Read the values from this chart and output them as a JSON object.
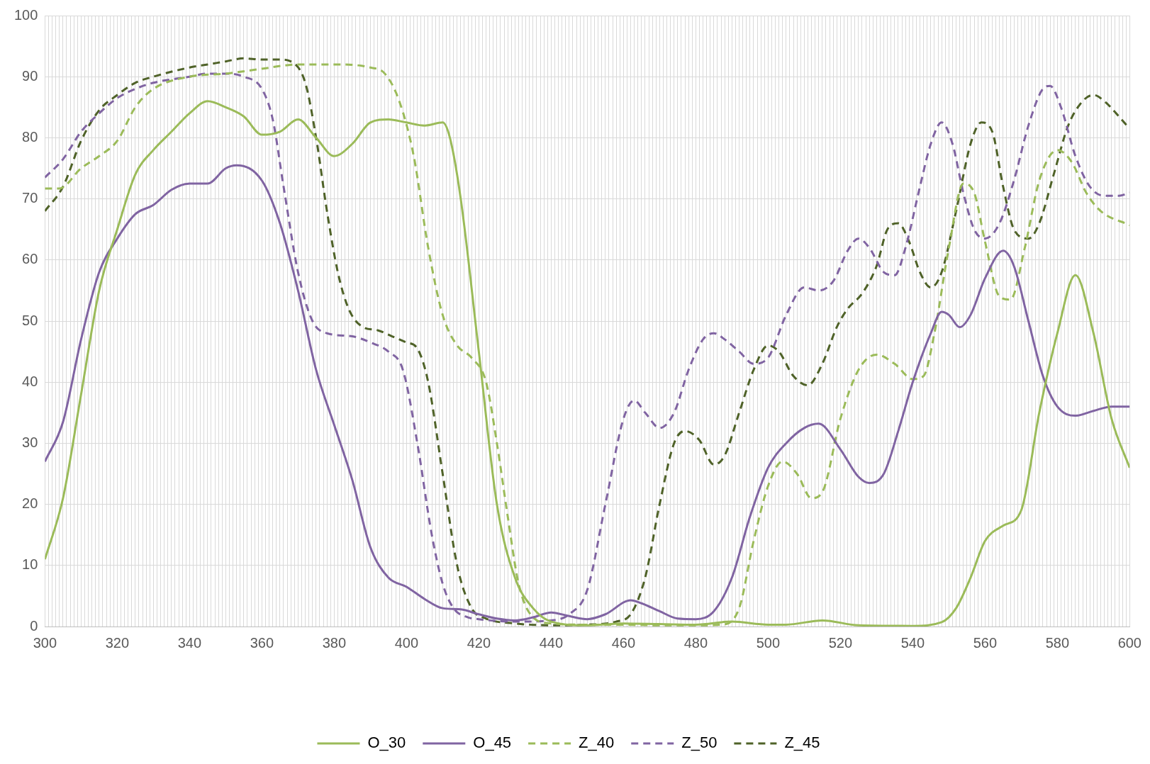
{
  "chart_data": {
    "type": "line",
    "xlim": [
      300,
      600
    ],
    "ylim": [
      0,
      100
    ],
    "yticks": [
      0,
      10,
      20,
      30,
      40,
      50,
      60,
      70,
      80,
      90,
      100
    ],
    "xticks": [
      300,
      {
        "value": 301,
        "label": null
      },
      {
        "value": 302,
        "label": null
      },
      {
        "value": 303,
        "label": null
      },
      {
        "value": 304,
        "label": null
      },
      {
        "value": 305,
        "label": null
      },
      {
        "value": 306,
        "label": null
      },
      {
        "value": 307,
        "label": null
      },
      {
        "value": 308,
        "label": null
      },
      {
        "value": 309,
        "label": null
      },
      {
        "value": 310,
        "label": null
      },
      {
        "value": 311,
        "label": null
      },
      {
        "value": 312,
        "label": null
      },
      {
        "value": 313,
        "label": null
      },
      {
        "value": 314,
        "label": null
      },
      {
        "value": 315,
        "label": null
      },
      {
        "value": 316,
        "label": null
      },
      {
        "value": 317,
        "label": null
      },
      {
        "value": 318,
        "label": null
      },
      {
        "value": 319,
        "label": null
      },
      320,
      {
        "value": 321,
        "label": null
      },
      {
        "value": 322,
        "label": null
      },
      {
        "value": 323,
        "label": null
      },
      {
        "value": 324,
        "label": null
      },
      {
        "value": 325,
        "label": null
      },
      {
        "value": 326,
        "label": null
      },
      {
        "value": 327,
        "label": null
      },
      {
        "value": 328,
        "label": null
      },
      {
        "value": 329,
        "label": null
      },
      {
        "value": 330,
        "label": null
      },
      {
        "value": 331,
        "label": null
      },
      {
        "value": 332,
        "label": null
      },
      {
        "value": 333,
        "label": null
      },
      {
        "value": 334,
        "label": null
      },
      {
        "value": 335,
        "label": null
      },
      {
        "value": 336,
        "label": null
      },
      {
        "value": 337,
        "label": null
      },
      {
        "value": 338,
        "label": null
      },
      {
        "value": 339,
        "label": null
      },
      340,
      {
        "value": 341,
        "label": null
      },
      {
        "value": 342,
        "label": null
      },
      {
        "value": 343,
        "label": null
      },
      {
        "value": 344,
        "label": null
      },
      {
        "value": 345,
        "label": null
      },
      {
        "value": 346,
        "label": null
      },
      {
        "value": 347,
        "label": null
      },
      {
        "value": 348,
        "label": null
      },
      {
        "value": 349,
        "label": null
      },
      {
        "value": 350,
        "label": null
      },
      {
        "value": 351,
        "label": null
      },
      {
        "value": 352,
        "label": null
      },
      {
        "value": 353,
        "label": null
      },
      {
        "value": 354,
        "label": null
      },
      {
        "value": 355,
        "label": null
      },
      {
        "value": 356,
        "label": null
      },
      {
        "value": 357,
        "label": null
      },
      {
        "value": 358,
        "label": null
      },
      {
        "value": 359,
        "label": null
      },
      360,
      {
        "value": 361,
        "label": null
      },
      {
        "value": 362,
        "label": null
      },
      {
        "value": 363,
        "label": null
      },
      {
        "value": 364,
        "label": null
      },
      {
        "value": 365,
        "label": null
      },
      {
        "value": 366,
        "label": null
      },
      {
        "value": 367,
        "label": null
      },
      {
        "value": 368,
        "label": null
      },
      {
        "value": 369,
        "label": null
      },
      {
        "value": 370,
        "label": null
      },
      {
        "value": 371,
        "label": null
      },
      {
        "value": 372,
        "label": null
      },
      {
        "value": 373,
        "label": null
      },
      {
        "value": 374,
        "label": null
      },
      {
        "value": 375,
        "label": null
      },
      {
        "value": 376,
        "label": null
      },
      {
        "value": 377,
        "label": null
      },
      {
        "value": 378,
        "label": null
      },
      {
        "value": 379,
        "label": null
      },
      380,
      {
        "value": 381,
        "label": null
      },
      {
        "value": 382,
        "label": null
      },
      {
        "value": 383,
        "label": null
      },
      {
        "value": 384,
        "label": null
      },
      {
        "value": 385,
        "label": null
      },
      {
        "value": 386,
        "label": null
      },
      {
        "value": 387,
        "label": null
      },
      {
        "value": 388,
        "label": null
      },
      {
        "value": 389,
        "label": null
      },
      {
        "value": 390,
        "label": null
      },
      {
        "value": 391,
        "label": null
      },
      {
        "value": 392,
        "label": null
      },
      {
        "value": 393,
        "label": null
      },
      {
        "value": 394,
        "label": null
      },
      {
        "value": 395,
        "label": null
      },
      {
        "value": 396,
        "label": null
      },
      {
        "value": 397,
        "label": null
      },
      {
        "value": 398,
        "label": null
      },
      {
        "value": 399,
        "label": null
      },
      400,
      {
        "value": 401,
        "label": null
      },
      {
        "value": 402,
        "label": null
      },
      {
        "value": 403,
        "label": null
      },
      {
        "value": 404,
        "label": null
      },
      {
        "value": 405,
        "label": null
      },
      {
        "value": 406,
        "label": null
      },
      {
        "value": 407,
        "label": null
      },
      {
        "value": 408,
        "label": null
      },
      {
        "value": 409,
        "label": null
      },
      {
        "value": 410,
        "label": null
      },
      {
        "value": 411,
        "label": null
      },
      {
        "value": 412,
        "label": null
      },
      {
        "value": 413,
        "label": null
      },
      {
        "value": 414,
        "label": null
      },
      {
        "value": 415,
        "label": null
      },
      {
        "value": 416,
        "label": null
      },
      {
        "value": 417,
        "label": null
      },
      {
        "value": 418,
        "label": null
      },
      {
        "value": 419,
        "label": null
      },
      420,
      {
        "value": 421,
        "label": null
      },
      {
        "value": 422,
        "label": null
      },
      {
        "value": 423,
        "label": null
      },
      {
        "value": 424,
        "label": null
      },
      {
        "value": 425,
        "label": null
      },
      {
        "value": 426,
        "label": null
      },
      {
        "value": 427,
        "label": null
      },
      {
        "value": 428,
        "label": null
      },
      {
        "value": 429,
        "label": null
      },
      {
        "value": 430,
        "label": null
      },
      {
        "value": 431,
        "label": null
      },
      {
        "value": 432,
        "label": null
      },
      {
        "value": 433,
        "label": null
      },
      {
        "value": 434,
        "label": null
      },
      {
        "value": 435,
        "label": null
      },
      {
        "value": 436,
        "label": null
      },
      {
        "value": 437,
        "label": null
      },
      {
        "value": 438,
        "label": null
      },
      {
        "value": 439,
        "label": null
      },
      440,
      {
        "value": 441,
        "label": null
      },
      {
        "value": 442,
        "label": null
      },
      {
        "value": 443,
        "label": null
      },
      {
        "value": 444,
        "label": null
      },
      {
        "value": 445,
        "label": null
      },
      {
        "value": 446,
        "label": null
      },
      {
        "value": 447,
        "label": null
      },
      {
        "value": 448,
        "label": null
      },
      {
        "value": 449,
        "label": null
      },
      {
        "value": 450,
        "label": null
      },
      {
        "value": 451,
        "label": null
      },
      {
        "value": 452,
        "label": null
      },
      {
        "value": 453,
        "label": null
      },
      {
        "value": 454,
        "label": null
      },
      {
        "value": 455,
        "label": null
      },
      {
        "value": 456,
        "label": null
      },
      {
        "value": 457,
        "label": null
      },
      {
        "value": 458,
        "label": null
      },
      {
        "value": 459,
        "label": null
      },
      460,
      {
        "value": 461,
        "label": null
      },
      {
        "value": 462,
        "label": null
      },
      {
        "value": 463,
        "label": null
      },
      {
        "value": 464,
        "label": null
      },
      {
        "value": 465,
        "label": null
      },
      {
        "value": 466,
        "label": null
      },
      {
        "value": 467,
        "label": null
      },
      {
        "value": 468,
        "label": null
      },
      {
        "value": 469,
        "label": null
      },
      {
        "value": 470,
        "label": null
      },
      {
        "value": 471,
        "label": null
      },
      {
        "value": 472,
        "label": null
      },
      {
        "value": 473,
        "label": null
      },
      {
        "value": 474,
        "label": null
      },
      {
        "value": 475,
        "label": null
      },
      {
        "value": 476,
        "label": null
      },
      {
        "value": 477,
        "label": null
      },
      {
        "value": 478,
        "label": null
      },
      {
        "value": 479,
        "label": null
      },
      480,
      {
        "value": 481,
        "label": null
      },
      {
        "value": 482,
        "label": null
      },
      {
        "value": 483,
        "label": null
      },
      {
        "value": 484,
        "label": null
      },
      {
        "value": 485,
        "label": null
      },
      {
        "value": 486,
        "label": null
      },
      {
        "value": 487,
        "label": null
      },
      {
        "value": 488,
        "label": null
      },
      {
        "value": 489,
        "label": null
      },
      {
        "value": 490,
        "label": null
      },
      {
        "value": 491,
        "label": null
      },
      {
        "value": 492,
        "label": null
      },
      {
        "value": 493,
        "label": null
      },
      {
        "value": 494,
        "label": null
      },
      {
        "value": 495,
        "label": null
      },
      {
        "value": 496,
        "label": null
      },
      {
        "value": 497,
        "label": null
      },
      {
        "value": 498,
        "label": null
      },
      {
        "value": 499,
        "label": null
      },
      500,
      {
        "value": 501,
        "label": null
      },
      {
        "value": 502,
        "label": null
      },
      {
        "value": 503,
        "label": null
      },
      {
        "value": 504,
        "label": null
      },
      {
        "value": 505,
        "label": null
      },
      {
        "value": 506,
        "label": null
      },
      {
        "value": 507,
        "label": null
      },
      {
        "value": 508,
        "label": null
      },
      {
        "value": 509,
        "label": null
      },
      {
        "value": 510,
        "label": null
      },
      {
        "value": 511,
        "label": null
      },
      {
        "value": 512,
        "label": null
      },
      {
        "value": 513,
        "label": null
      },
      {
        "value": 514,
        "label": null
      },
      {
        "value": 515,
        "label": null
      },
      {
        "value": 516,
        "label": null
      },
      {
        "value": 517,
        "label": null
      },
      {
        "value": 518,
        "label": null
      },
      {
        "value": 519,
        "label": null
      },
      520,
      {
        "value": 521,
        "label": null
      },
      {
        "value": 522,
        "label": null
      },
      {
        "value": 523,
        "label": null
      },
      {
        "value": 524,
        "label": null
      },
      {
        "value": 525,
        "label": null
      },
      {
        "value": 526,
        "label": null
      },
      {
        "value": 527,
        "label": null
      },
      {
        "value": 528,
        "label": null
      },
      {
        "value": 529,
        "label": null
      },
      {
        "value": 530,
        "label": null
      },
      {
        "value": 531,
        "label": null
      },
      {
        "value": 532,
        "label": null
      },
      {
        "value": 533,
        "label": null
      },
      {
        "value": 534,
        "label": null
      },
      {
        "value": 535,
        "label": null
      },
      {
        "value": 536,
        "label": null
      },
      {
        "value": 537,
        "label": null
      },
      {
        "value": 538,
        "label": null
      },
      {
        "value": 539,
        "label": null
      },
      540,
      {
        "value": 541,
        "label": null
      },
      {
        "value": 542,
        "label": null
      },
      {
        "value": 543,
        "label": null
      },
      {
        "value": 544,
        "label": null
      },
      {
        "value": 545,
        "label": null
      },
      {
        "value": 546,
        "label": null
      },
      {
        "value": 547,
        "label": null
      },
      {
        "value": 548,
        "label": null
      },
      {
        "value": 549,
        "label": null
      },
      {
        "value": 550,
        "label": null
      },
      {
        "value": 551,
        "label": null
      },
      {
        "value": 552,
        "label": null
      },
      {
        "value": 553,
        "label": null
      },
      {
        "value": 554,
        "label": null
      },
      {
        "value": 555,
        "label": null
      },
      {
        "value": 556,
        "label": null
      },
      {
        "value": 557,
        "label": null
      },
      {
        "value": 558,
        "label": null
      },
      {
        "value": 559,
        "label": null
      },
      560,
      {
        "value": 561,
        "label": null
      },
      {
        "value": 562,
        "label": null
      },
      {
        "value": 563,
        "label": null
      },
      {
        "value": 564,
        "label": null
      },
      {
        "value": 565,
        "label": null
      },
      {
        "value": 566,
        "label": null
      },
      {
        "value": 567,
        "label": null
      },
      {
        "value": 568,
        "label": null
      },
      {
        "value": 569,
        "label": null
      },
      {
        "value": 570,
        "label": null
      },
      {
        "value": 571,
        "label": null
      },
      {
        "value": 572,
        "label": null
      },
      {
        "value": 573,
        "label": null
      },
      {
        "value": 574,
        "label": null
      },
      {
        "value": 575,
        "label": null
      },
      {
        "value": 576,
        "label": null
      },
      {
        "value": 577,
        "label": null
      },
      {
        "value": 578,
        "label": null
      },
      {
        "value": 579,
        "label": null
      },
      580,
      {
        "value": 581,
        "label": null
      },
      {
        "value": 582,
        "label": null
      },
      {
        "value": 583,
        "label": null
      },
      {
        "value": 584,
        "label": null
      },
      {
        "value": 585,
        "label": null
      },
      {
        "value": 586,
        "label": null
      },
      {
        "value": 587,
        "label": null
      },
      {
        "value": 588,
        "label": null
      },
      {
        "value": 589,
        "label": null
      },
      {
        "value": 590,
        "label": null
      },
      {
        "value": 591,
        "label": null
      },
      {
        "value": 592,
        "label": null
      },
      {
        "value": 593,
        "label": null
      },
      {
        "value": 594,
        "label": null
      },
      {
        "value": 595,
        "label": null
      },
      {
        "value": 596,
        "label": null
      },
      {
        "value": 597,
        "label": null
      },
      {
        "value": 598,
        "label": null
      },
      {
        "value": 599,
        "label": null
      },
      600
    ],
    "grid": true,
    "legend": "bottom",
    "marker": "none",
    "series": [
      {
        "name": "O_30",
        "color": "#9bbb59",
        "line_style": "solid",
        "x": [
          300,
          305,
          310,
          315,
          320,
          325,
          330,
          335,
          340,
          345,
          350,
          355,
          360,
          365,
          370,
          375,
          380,
          385,
          390,
          395,
          400,
          405,
          410,
          412,
          415,
          420,
          425,
          430,
          435,
          440,
          450,
          460,
          470,
          480,
          490,
          500,
          505,
          515,
          525,
          540,
          548,
          552,
          556,
          560,
          565,
          570,
          575,
          580,
          585,
          590,
          595,
          600
        ],
        "values": [
          11,
          21,
          38,
          55,
          65,
          74,
          78,
          81,
          84,
          86,
          85,
          83.5,
          80.5,
          81,
          83,
          80,
          77,
          79,
          82.5,
          83,
          82.5,
          82,
          82.5,
          80,
          70,
          45,
          20,
          8,
          3,
          0.8,
          0.2,
          0.5,
          0.4,
          0.3,
          0.8,
          0.3,
          0.3,
          1,
          0.2,
          0.1,
          0.7,
          3,
          8,
          14,
          16.5,
          19,
          35,
          48,
          57.5,
          48,
          34,
          26
        ]
      },
      {
        "name": "O_45",
        "color": "#8064a2",
        "line_style": "solid",
        "x": [
          300,
          305,
          310,
          315,
          320,
          325,
          330,
          335,
          340,
          345,
          350,
          353,
          360,
          365,
          370,
          375,
          380,
          385,
          390,
          395,
          400,
          405,
          410,
          415,
          420,
          425,
          430,
          435,
          440,
          445,
          450,
          455,
          462,
          465,
          470,
          475,
          480,
          485,
          490,
          495,
          500,
          505,
          510,
          514,
          520,
          525,
          528,
          532,
          536,
          540,
          545,
          548,
          550,
          553,
          556,
          560,
          565,
          568,
          572,
          576,
          580,
          585,
          590,
          595,
          600
        ],
        "values": [
          27,
          33.5,
          47,
          58,
          63.5,
          67.5,
          69,
          71.5,
          72.5,
          72.5,
          75,
          75.5,
          73,
          66,
          55,
          42,
          33,
          24,
          13,
          8,
          6.5,
          4.5,
          3,
          2.8,
          2,
          1.3,
          1,
          1.5,
          2.3,
          1.7,
          1.2,
          2,
          4.3,
          3.8,
          2.5,
          1.3,
          1.2,
          2.5,
          8,
          18,
          26,
          30,
          32.5,
          33.2,
          29,
          24.5,
          23.5,
          25,
          32,
          40,
          48,
          51.5,
          51,
          49,
          51,
          57,
          61.5,
          59,
          50,
          41,
          36,
          34.5,
          35.3,
          36,
          36
        ]
      },
      {
        "name": "Z_40",
        "color": "#9bbb59",
        "line_style": "dashed",
        "x": [
          300,
          304,
          310,
          315,
          320,
          325,
          330,
          340,
          350,
          360,
          370,
          380,
          390,
          394,
          398,
          402,
          406,
          410,
          414,
          418,
          422,
          425,
          428,
          431,
          435,
          440,
          450,
          460,
          470,
          480,
          487,
          492,
          496,
          500,
          504,
          508,
          512,
          515,
          520,
          525,
          530,
          535,
          540,
          543,
          546,
          550,
          554,
          557,
          560,
          564,
          567,
          571,
          575,
          580,
          584,
          588,
          592,
          600
        ],
        "values": [
          71.7,
          71.7,
          75,
          77,
          79.5,
          85,
          88,
          90,
          90.5,
          91.3,
          92,
          92,
          91.5,
          90.5,
          86,
          77,
          62,
          51,
          46,
          44,
          40,
          30,
          18,
          7,
          1.5,
          0.5,
          0.3,
          0.3,
          0.2,
          0.2,
          0.3,
          3,
          14,
          23,
          27,
          25,
          21,
          22,
          34,
          42,
          44.5,
          43,
          40.5,
          41,
          48,
          62,
          72.5,
          71,
          63,
          54,
          53.5,
          62,
          73,
          78,
          76,
          71,
          68,
          65.7
        ]
      },
      {
        "name": "Z_50",
        "color": "#8064a2",
        "line_style": "dashed",
        "x": [
          300,
          305,
          310,
          315,
          320,
          325,
          330,
          340,
          345,
          350,
          355,
          360,
          363,
          366,
          370,
          374,
          378,
          385,
          390,
          395,
          399,
          403,
          407,
          410,
          413,
          417,
          420,
          430,
          440,
          445,
          450,
          455,
          460,
          463,
          466,
          470,
          474,
          478,
          482,
          485,
          488,
          492,
          496,
          500,
          505,
          510,
          514,
          518,
          522,
          525,
          528,
          532,
          535,
          538,
          542,
          545,
          548,
          551,
          554,
          557,
          560,
          564,
          568,
          572,
          576,
          578,
          581,
          585,
          589,
          593,
          597,
          600
        ],
        "values": [
          73.5,
          76.5,
          81,
          84,
          86.5,
          88,
          89,
          90,
          90.5,
          90.5,
          90,
          88,
          83,
          72,
          58,
          50,
          48,
          47.5,
          46.5,
          45,
          42,
          30,
          15,
          7,
          3,
          1.5,
          1.2,
          0.8,
          1,
          2,
          6,
          20,
          34,
          37,
          35,
          32.5,
          35,
          42,
          47,
          48,
          47,
          45,
          43,
          44,
          51,
          55.5,
          55,
          56.5,
          61.5,
          63.5,
          62,
          58,
          57.5,
          62,
          72,
          79,
          82.5,
          79,
          71,
          65,
          63.5,
          66,
          73,
          82,
          88,
          88.5,
          85,
          77,
          72,
          70.5,
          70.5,
          71
        ]
      },
      {
        "name": "Z_45",
        "color": "#4f6228",
        "line_style": "dashed",
        "x": [
          300,
          305,
          310,
          315,
          320,
          325,
          330,
          340,
          345,
          350,
          355,
          360,
          365,
          368,
          372,
          375,
          378,
          381,
          384,
          388,
          392,
          396,
          400,
          403,
          406,
          410,
          414,
          418,
          422,
          430,
          440,
          450,
          458,
          462,
          466,
          470,
          474,
          477,
          481,
          485,
          488,
          492,
          496,
          500,
          503,
          507,
          511,
          515,
          519,
          522,
          526,
          530,
          533,
          536,
          539,
          542,
          545,
          548,
          552,
          556,
          559,
          562,
          565,
          568,
          572,
          575,
          579,
          583,
          587,
          590,
          593,
          597,
          600
        ],
        "values": [
          68,
          72,
          79.5,
          84.5,
          87,
          89,
          90,
          91.5,
          92,
          92.5,
          93,
          92.8,
          92.8,
          92.5,
          89,
          80,
          68,
          58,
          52,
          49,
          48.5,
          47.5,
          46.5,
          45.5,
          40,
          25,
          10,
          3,
          1.3,
          0.5,
          0.2,
          0.3,
          0.8,
          2,
          8,
          20,
          30,
          32,
          30.5,
          26.5,
          28,
          35,
          42,
          46,
          45,
          41,
          39.5,
          43,
          49,
          52,
          54.5,
          59,
          65,
          66,
          63,
          58,
          55.5,
          58,
          68,
          79,
          82.5,
          81,
          72,
          65,
          63.5,
          66,
          74,
          82,
          86,
          87,
          86,
          83.5,
          81.5
        ]
      }
    ]
  }
}
